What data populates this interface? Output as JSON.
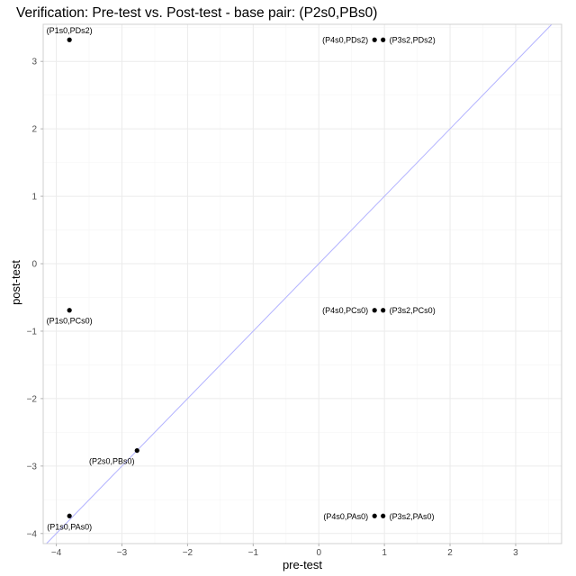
{
  "chart_data": {
    "type": "scatter",
    "title": "Verification: Pre-test vs. Post-test - base pair: (P2s0,PBs0)",
    "xlabel": "pre-test",
    "ylabel": "post-test",
    "xlim": [
      -4.2,
      3.7
    ],
    "ylim": [
      -4.15,
      3.55
    ],
    "x_ticks": [
      -4,
      -3,
      -2,
      -1,
      0,
      1,
      2,
      3
    ],
    "y_ticks": [
      -4,
      -3,
      -2,
      -1,
      0,
      1,
      2,
      3
    ],
    "grid": true,
    "reference_line": {
      "type": "identity",
      "slope": 1,
      "intercept": 0,
      "color": "#b3b3ff"
    },
    "point_color": "#000000",
    "points": [
      {
        "label": "(P1s0,PDs2)",
        "x": -3.8,
        "y": 3.32,
        "label_side": "above"
      },
      {
        "label": "(P4s0,PDs2)",
        "x": 0.85,
        "y": 3.32,
        "label_side": "left"
      },
      {
        "label": "(P3s2,PDs2)",
        "x": 0.98,
        "y": 3.32,
        "label_side": "right"
      },
      {
        "label": "(P1s0,PCs0)",
        "x": -3.8,
        "y": -0.69,
        "label_side": "below"
      },
      {
        "label": "(P4s0,PCs0)",
        "x": 0.85,
        "y": -0.69,
        "label_side": "left"
      },
      {
        "label": "(P3s2,PCs0)",
        "x": 0.98,
        "y": -0.69,
        "label_side": "right"
      },
      {
        "label": "(P2s0,PBs0)",
        "x": -2.77,
        "y": -2.77,
        "label_side": "below-left"
      },
      {
        "label": "(P1s0,PAs0)",
        "x": -3.8,
        "y": -3.74,
        "label_side": "below"
      },
      {
        "label": "(P4s0,PAs0)",
        "x": 0.85,
        "y": -3.74,
        "label_side": "left"
      },
      {
        "label": "(P3s2,PAs0)",
        "x": 0.98,
        "y": -3.74,
        "label_side": "right"
      }
    ]
  }
}
